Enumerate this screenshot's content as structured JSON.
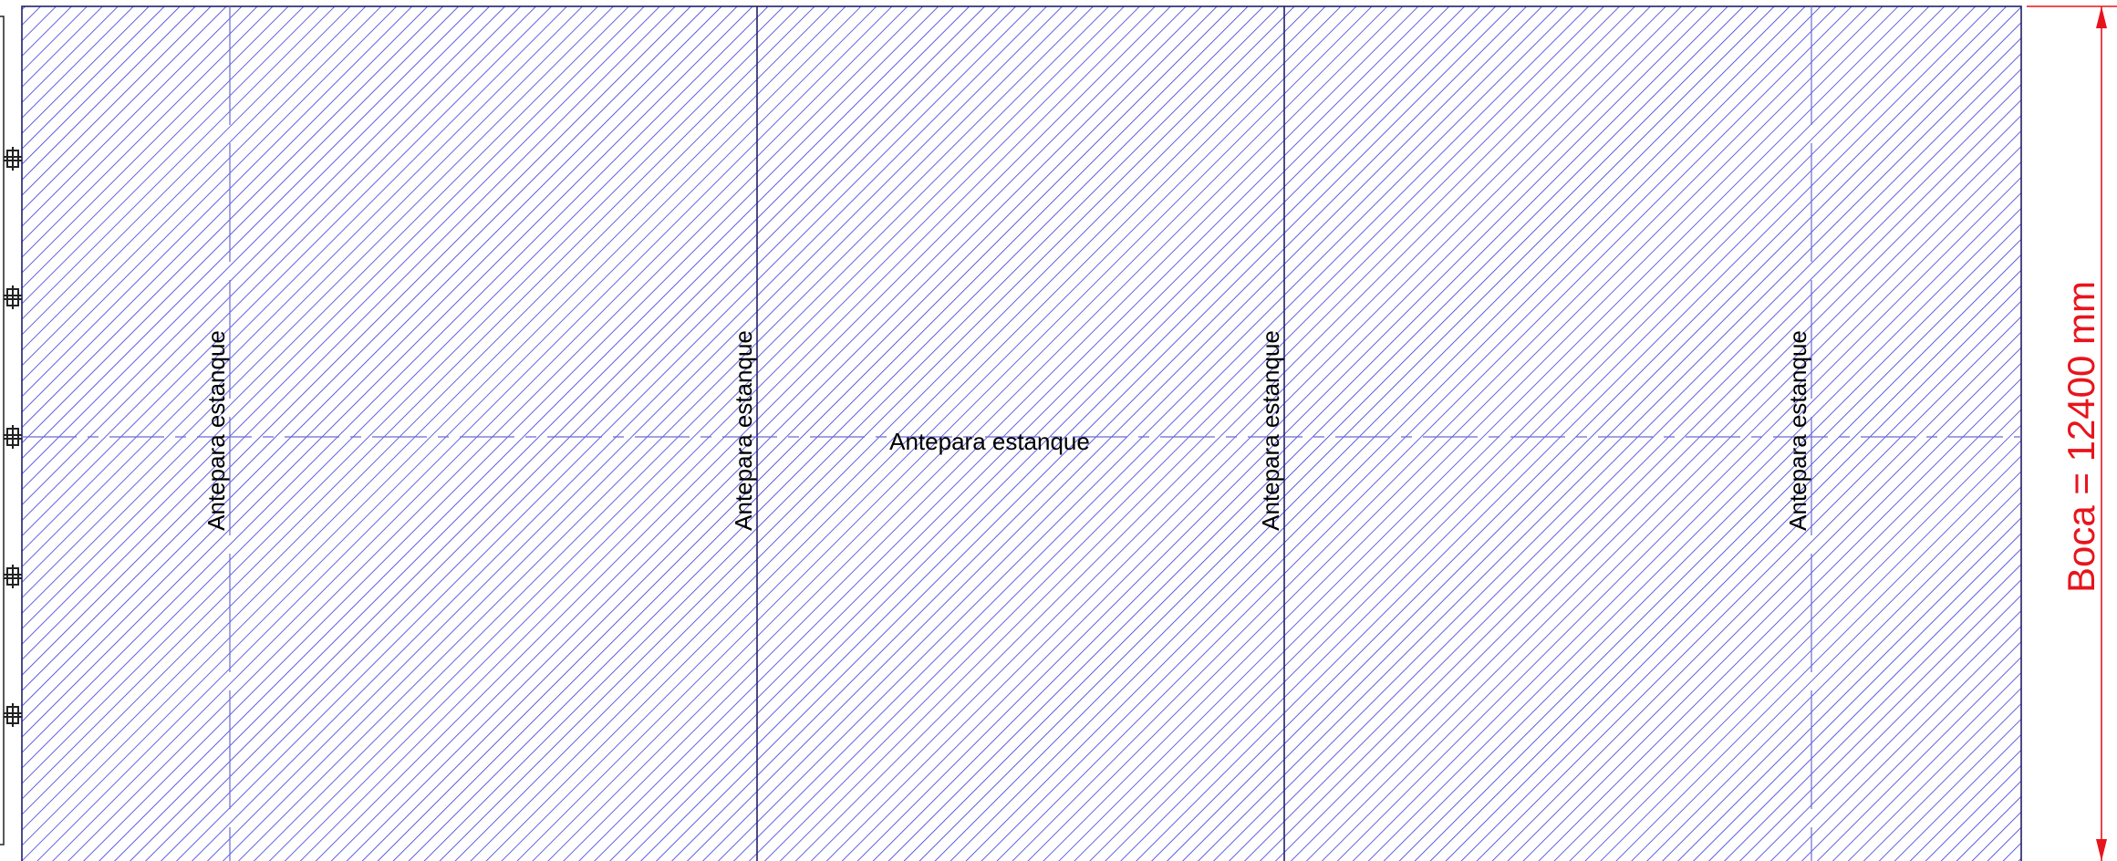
{
  "labels": {
    "bulkhead_1": "Antepara estanque",
    "bulkhead_2": "Antepara estanque",
    "bulkhead_3": "Antepara estanque",
    "bulkhead_4": "Antepara estanque",
    "centerline": "Antepara estanque"
  },
  "dimension": {
    "text": "Boca = 12400 mm"
  },
  "colors": {
    "hatch": "#3a3ad8",
    "outline": "#20206a",
    "dimension": "#e8141c",
    "symbol": "#222222"
  }
}
